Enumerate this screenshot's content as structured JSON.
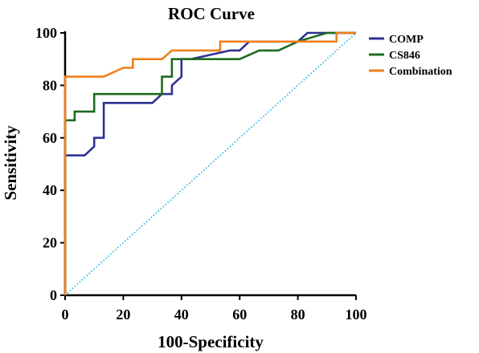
{
  "chart_data": {
    "type": "line",
    "title": "ROC Curve",
    "xlabel": "100-Specificity",
    "ylabel": "Sensitivity",
    "xlim": [
      0,
      100
    ],
    "ylim": [
      0,
      100
    ],
    "xticks": [
      0,
      20,
      40,
      60,
      80,
      100
    ],
    "yticks": [
      0,
      20,
      40,
      60,
      80,
      100
    ],
    "grid": false,
    "legend_position": "top-right",
    "series": [
      {
        "name": "COMP",
        "color": "#2e3192",
        "points": [
          [
            0,
            0
          ],
          [
            0,
            53.3
          ],
          [
            6.7,
            53.3
          ],
          [
            10,
            56.7
          ],
          [
            10,
            60
          ],
          [
            13.3,
            60
          ],
          [
            13.3,
            73.3
          ],
          [
            30,
            73.3
          ],
          [
            33.3,
            76.7
          ],
          [
            36.7,
            76.7
          ],
          [
            36.7,
            80
          ],
          [
            40,
            83.3
          ],
          [
            40,
            90
          ],
          [
            43.3,
            90
          ],
          [
            56.7,
            93.3
          ],
          [
            60,
            93.3
          ],
          [
            63.3,
            96.7
          ],
          [
            80,
            96.7
          ],
          [
            83.3,
            100
          ],
          [
            100,
            100
          ]
        ]
      },
      {
        "name": "CS846",
        "color": "#1e6b1e",
        "points": [
          [
            0,
            0
          ],
          [
            0,
            66.7
          ],
          [
            3.3,
            66.7
          ],
          [
            3.3,
            70
          ],
          [
            10,
            70
          ],
          [
            10,
            76.7
          ],
          [
            33.3,
            76.7
          ],
          [
            33.3,
            83.3
          ],
          [
            36.7,
            83.3
          ],
          [
            36.7,
            90
          ],
          [
            60,
            90
          ],
          [
            66.7,
            93.3
          ],
          [
            73.3,
            93.3
          ],
          [
            80,
            96.7
          ],
          [
            90,
            100
          ],
          [
            100,
            100
          ]
        ]
      },
      {
        "name": "Combination",
        "color": "#f07f1e",
        "points": [
          [
            0,
            0
          ],
          [
            0,
            83.3
          ],
          [
            13.3,
            83.3
          ],
          [
            20,
            86.7
          ],
          [
            23.3,
            86.7
          ],
          [
            23.3,
            90
          ],
          [
            33.3,
            90
          ],
          [
            36.7,
            93.3
          ],
          [
            53.3,
            93.3
          ],
          [
            53.3,
            96.7
          ],
          [
            93.3,
            96.7
          ],
          [
            93.3,
            100
          ],
          [
            100,
            100
          ]
        ]
      }
    ],
    "reference_line": {
      "points": [
        [
          0,
          0
        ],
        [
          100,
          100
        ]
      ],
      "color": "#2ab5e0"
    }
  }
}
